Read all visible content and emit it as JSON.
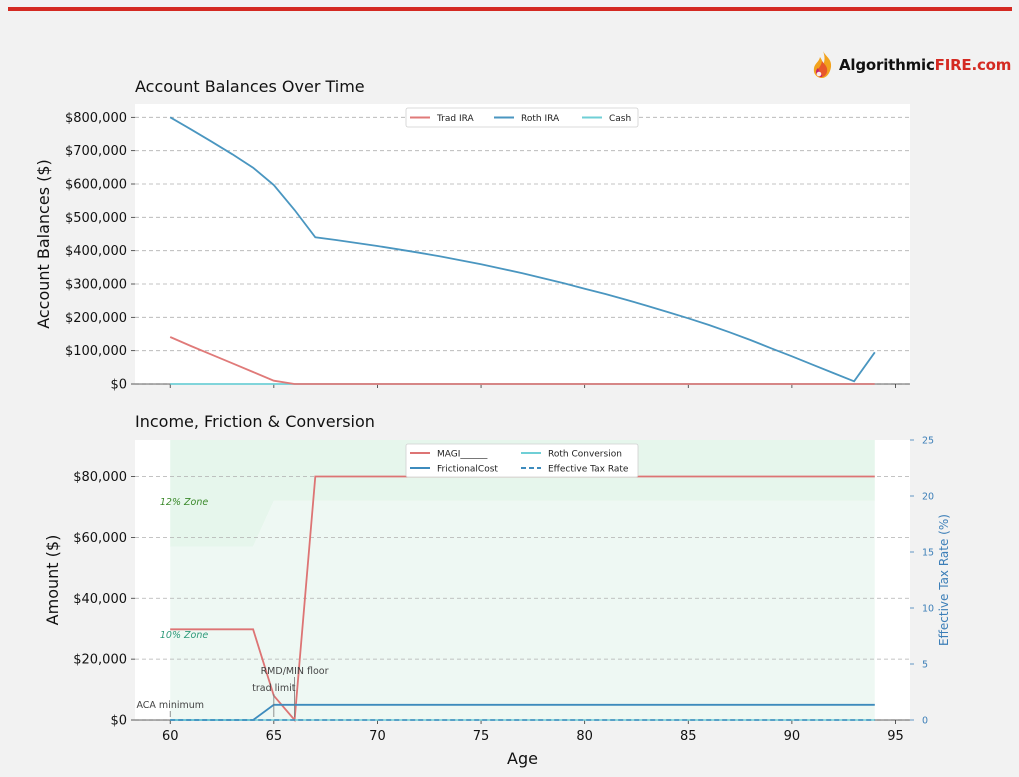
{
  "brand": {
    "name_part1": "Algorithmic",
    "name_part2": "FIRE.com",
    "accent_color": "#d42a22",
    "dark_color": "#111111",
    "logo_icon": "flame-icon"
  },
  "colors": {
    "trad_ira": "#e07a79",
    "roth_ira": "#4a96c0",
    "cash": "#6fcfd6",
    "magi": "#dd7474",
    "frictional_cost": "#3d8bbd",
    "roth_conversion": "#6fcfd6",
    "effective_tax_rate": "#3d8bbd",
    "zone12": "#e6f6ec",
    "zone10": "#eef8f3",
    "zone12_label": "#3c8a2c",
    "zone10_label": "#2f9a7a",
    "right_axis": "#3d7fb8"
  },
  "chart_data": [
    {
      "type": "line",
      "title": "Account Balances Over Time",
      "xlabel": "",
      "ylabel": "Account Balances ($)",
      "xlim": [
        58.3,
        95.7
      ],
      "ylim": [
        0,
        840000
      ],
      "x_ticks": [
        60,
        65,
        70,
        75,
        80,
        85,
        90,
        95
      ],
      "y_ticks": [
        0,
        100000,
        200000,
        300000,
        400000,
        500000,
        600000,
        700000,
        800000
      ],
      "y_tick_labels": [
        "$0",
        "$100,000",
        "$200,000",
        "$300,000",
        "$400,000",
        "$500,000",
        "$600,000",
        "$700,000",
        "$800,000"
      ],
      "grid": "y-dashed",
      "legend_position": "top-center",
      "x": [
        60,
        61,
        62,
        63,
        64,
        65,
        66,
        67,
        68,
        69,
        70,
        71,
        72,
        73,
        74,
        75,
        76,
        77,
        78,
        79,
        80,
        81,
        82,
        83,
        84,
        85,
        86,
        87,
        88,
        89,
        90,
        91,
        92,
        93,
        94
      ],
      "series": [
        {
          "name": "Trad IRA",
          "values": [
            141000,
            114000,
            88000,
            62000,
            36000,
            10000,
            0,
            0,
            0,
            0,
            0,
            0,
            0,
            0,
            0,
            0,
            0,
            0,
            0,
            0,
            0,
            0,
            0,
            0,
            0,
            0,
            0,
            0,
            0,
            0,
            0,
            0,
            0,
            0,
            0
          ]
        },
        {
          "name": "Roth IRA",
          "values": [
            800000,
            764000,
            727000,
            689000,
            649000,
            597000,
            522000,
            440000,
            432000,
            423000,
            414000,
            404000,
            394000,
            383000,
            371000,
            359000,
            346000,
            332000,
            317000,
            302000,
            286000,
            270000,
            253000,
            235000,
            216000,
            197000,
            177000,
            155000,
            132000,
            107000,
            83000,
            58000,
            33000,
            8000,
            95000
          ]
        },
        {
          "name": "Cash",
          "values": [
            0,
            0,
            0,
            0,
            0,
            0,
            0,
            0,
            0,
            0,
            0,
            0,
            0,
            0,
            0,
            0,
            0,
            0,
            0,
            0,
            0,
            0,
            0,
            0,
            0,
            0,
            0,
            0,
            0,
            0,
            0,
            0,
            0,
            0,
            0
          ]
        }
      ]
    },
    {
      "type": "line",
      "title": "Income, Friction & Conversion",
      "xlabel": "Age",
      "ylabel": "Amount ($)",
      "y2label": "Effective Tax Rate (%)",
      "xlim": [
        58.3,
        95.7
      ],
      "ylim": [
        0,
        92000
      ],
      "y2lim": [
        0,
        25
      ],
      "x_ticks": [
        60,
        65,
        70,
        75,
        80,
        85,
        90,
        95
      ],
      "x_tick_labels": [
        "60",
        "65",
        "70",
        "75",
        "80",
        "85",
        "90",
        "95"
      ],
      "y_ticks": [
        0,
        20000,
        40000,
        60000,
        80000
      ],
      "y_tick_labels": [
        "$0",
        "$20,000",
        "$40,000",
        "$60,000",
        "$80,000"
      ],
      "y2_ticks": [
        0,
        5,
        10,
        15,
        20,
        25
      ],
      "y2_tick_labels": [
        "0",
        "5",
        "10",
        "15",
        "20",
        "25"
      ],
      "grid": "y-dashed",
      "legend_position": "top-center",
      "zones": [
        {
          "label": "12% Zone",
          "x": [
            60,
            64,
            65,
            94
          ],
          "upper": [
            92000,
            92000,
            92000,
            92000
          ],
          "lower": [
            57000,
            57000,
            72000,
            72000
          ]
        },
        {
          "label": "10% Zone",
          "x": [
            60,
            64,
            65,
            94
          ],
          "upper": [
            57000,
            57000,
            72000,
            72000
          ],
          "lower": [
            0,
            0,
            0,
            0
          ]
        }
      ],
      "annotations": [
        {
          "text": "ACA minimum",
          "x": 60,
          "y": 0
        },
        {
          "text": "RMD/MIN floor",
          "x": 66,
          "y": 0
        },
        {
          "text": "trad limit",
          "x": 65,
          "y": 0
        }
      ],
      "series": [
        {
          "name": "MAGI______",
          "x": [
            60,
            64,
            65,
            66,
            67,
            94
          ],
          "values": [
            29800,
            29800,
            8000,
            0,
            80000,
            80000
          ]
        },
        {
          "name": "FrictionalCost",
          "x": [
            60,
            64,
            65,
            94
          ],
          "values": [
            0,
            0,
            5000,
            5000
          ]
        },
        {
          "name": "Roth Conversion",
          "x": [
            60,
            94
          ],
          "values": [
            0,
            0
          ]
        },
        {
          "name": "Effective Tax Rate",
          "axis": "right",
          "x": [
            60,
            94
          ],
          "values": [
            0,
            0
          ]
        }
      ]
    }
  ]
}
